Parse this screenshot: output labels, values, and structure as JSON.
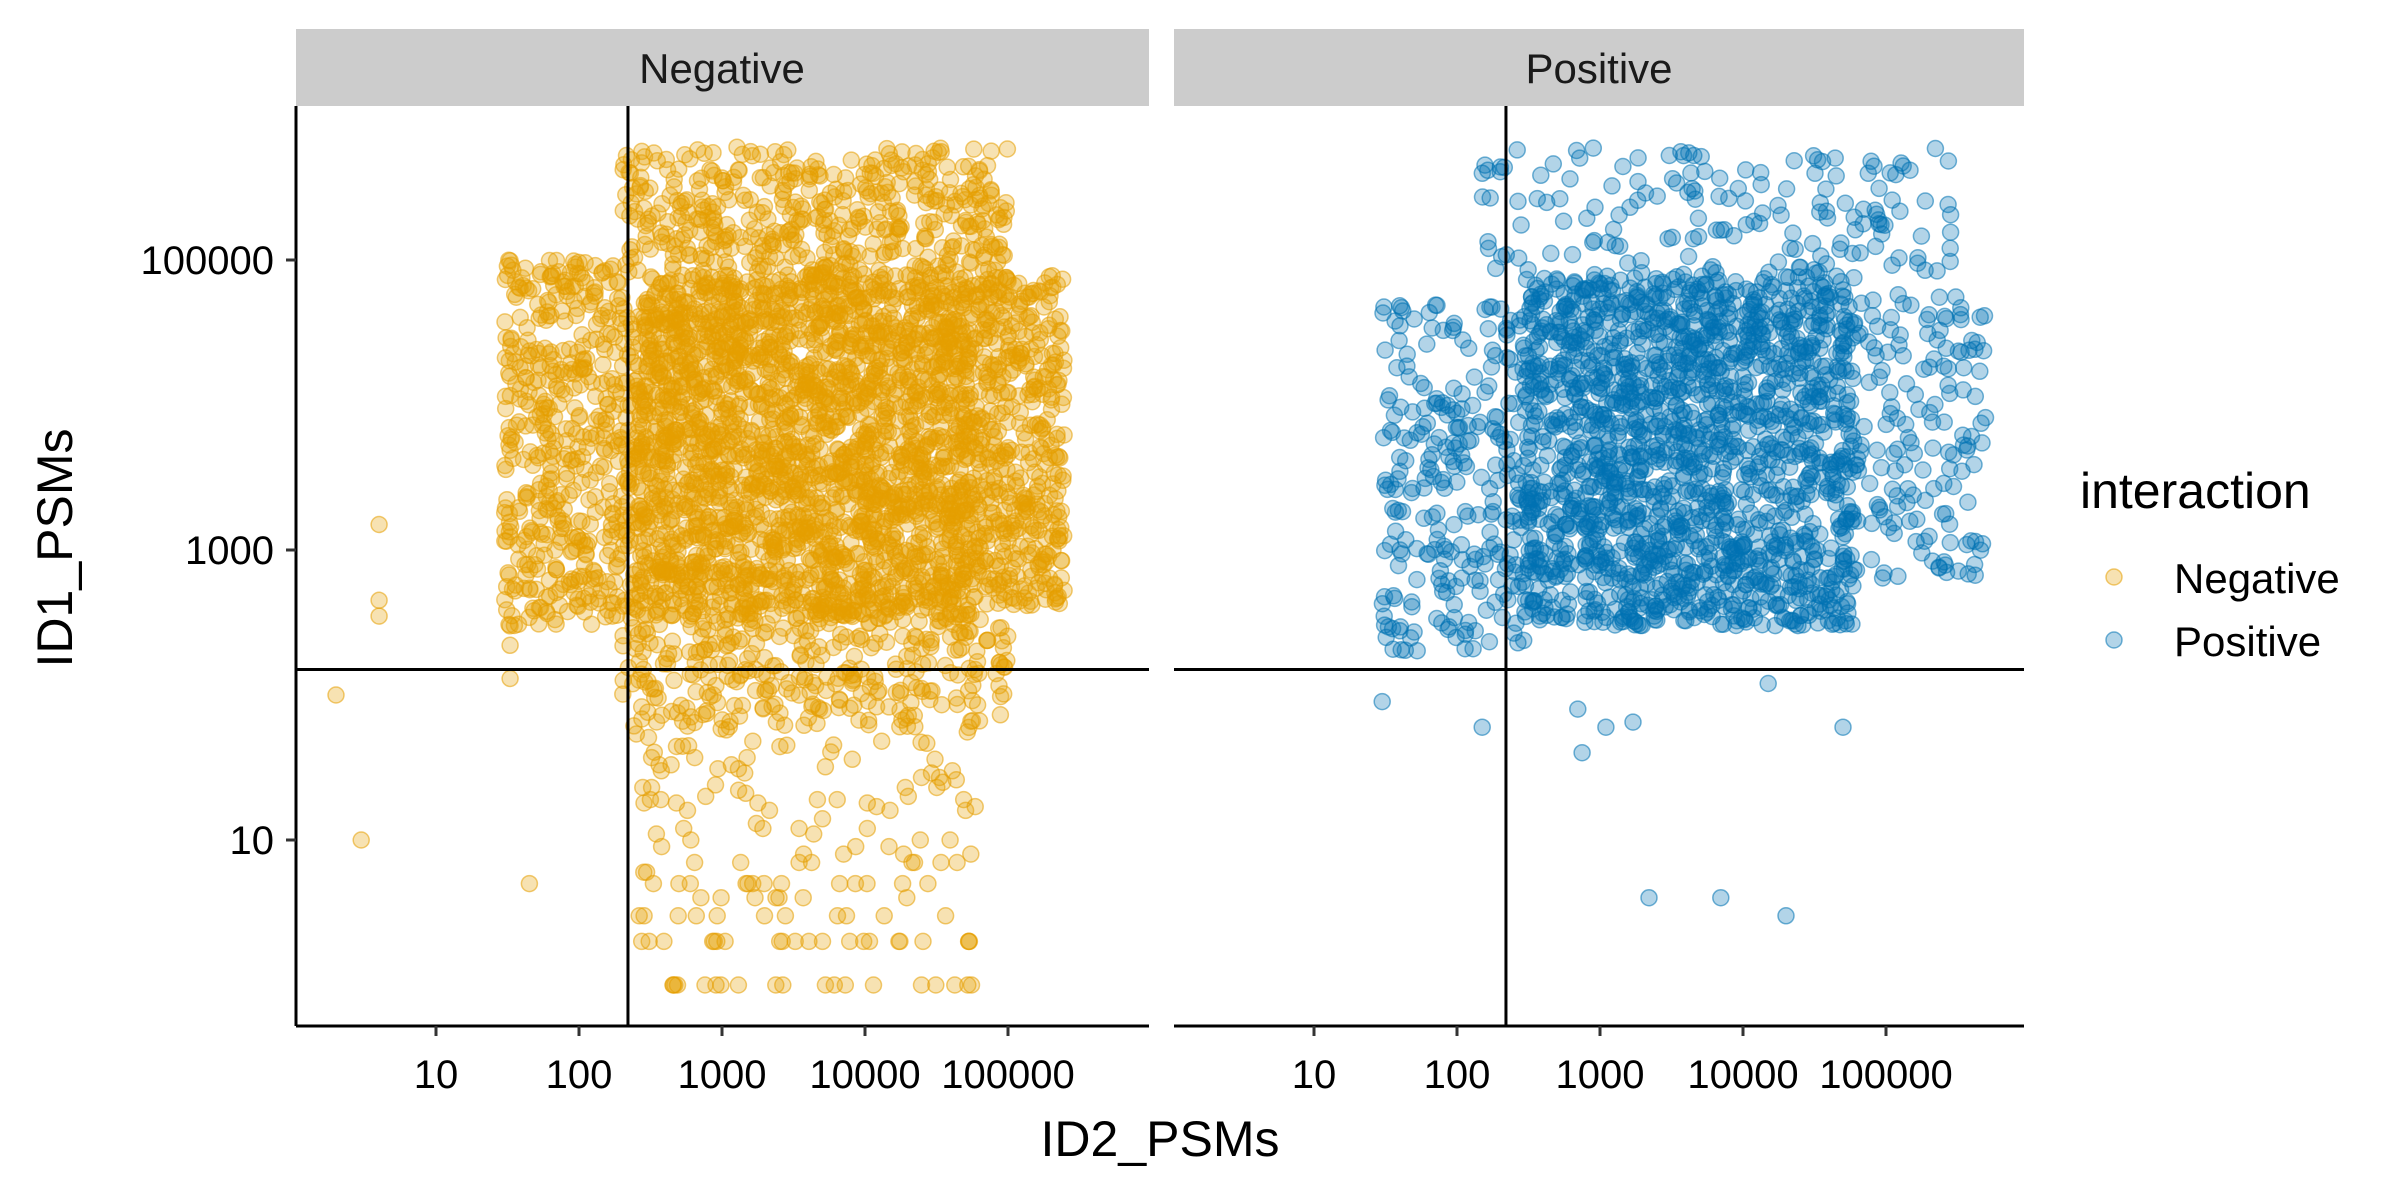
{
  "chart_data": {
    "type": "scatter",
    "facet_variable": "interaction",
    "panels": [
      {
        "label": "Negative"
      },
      {
        "label": "Positive"
      }
    ],
    "xlabel": "ID2_PSMs",
    "ylabel": "ID1_PSMs",
    "x_scale": "log10",
    "y_scale": "log10",
    "x_ticks": [
      10,
      100,
      1000,
      10000,
      100000
    ],
    "x_tick_labels": [
      "10",
      "100",
      "1000",
      "10000",
      "100000"
    ],
    "y_ticks": [
      10,
      1000,
      100000
    ],
    "y_tick_labels": [
      "10",
      "1000",
      "100000"
    ],
    "xlim": [
      1.5,
      1000000
    ],
    "ylim": [
      0.9,
      1000000
    ],
    "reference_lines": {
      "vertical_x": 220,
      "horizontal_y": 150
    },
    "legend": {
      "title": "interaction",
      "position": "right",
      "entries": [
        {
          "label": "Negative",
          "color": "#E69F00"
        },
        {
          "label": "Positive",
          "color": "#0072B2"
        }
      ]
    },
    "point_alpha": 0.3,
    "series": [
      {
        "name": "Negative",
        "color": "#E69F00",
        "panel": "Negative",
        "points": [
          [
            4,
            0.0,
            1500
          ],
          [
            4,
            0.1,
            450
          ],
          [
            4,
            0.05,
            350
          ],
          [
            3,
            0.0,
            10
          ],
          [
            45,
            0.0,
            5
          ],
          [
            2,
            0.0,
            100
          ],
          {
            "cluster": true,
            "n": 2400,
            "x_range": [
              250,
              60000
            ],
            "y_range": [
              350,
              80000
            ]
          },
          {
            "cluster": true,
            "n": 500,
            "x_range": [
              30,
              250
            ],
            "y_range": [
              300,
              100000
            ]
          },
          {
            "cluster": true,
            "n": 420,
            "x_range": [
              60000,
              250000
            ],
            "y_range": [
              400,
              80000
            ]
          },
          {
            "cluster": true,
            "n": 450,
            "x_range": [
              200,
              100000
            ],
            "y_range": [
              80000,
              600000
            ]
          },
          {
            "cluster": true,
            "n": 320,
            "x_range": [
              200,
              100000
            ],
            "y_range": [
              60,
              350
            ]
          },
          {
            "cluster": true,
            "n": 160,
            "x_range": [
              250,
              60000
            ],
            "y_range": [
              1,
              60
            ]
          },
          [
            33,
            0.0,
            130
          ],
          [
            33,
            0.0,
            220
          ],
          [
            33,
            0.0,
            300
          ]
        ]
      },
      {
        "name": "Positive",
        "color": "#0072B2",
        "panel": "Positive",
        "points": [
          {
            "cluster": true,
            "n": 1700,
            "x_range": [
              300,
              60000
            ],
            "y_range": [
              300,
              80000
            ]
          },
          {
            "cluster": true,
            "n": 260,
            "x_range": [
              30,
              300
            ],
            "y_range": [
              200,
              50000
            ]
          },
          {
            "cluster": true,
            "n": 150,
            "x_range": [
              60000,
              500000
            ],
            "y_range": [
              600,
              60000
            ]
          },
          {
            "cluster": true,
            "n": 160,
            "x_range": [
              150,
              300000
            ],
            "y_range": [
              80000,
              600000
            ]
          },
          [
            30,
            0.0,
            90
          ],
          [
            40,
            0.0,
            1000
          ],
          [
            700,
            0.0,
            80
          ],
          [
            750,
            0.0,
            40
          ],
          [
            1100,
            0.0,
            60
          ],
          [
            1700,
            0.0,
            65
          ],
          [
            150,
            0.0,
            60
          ],
          [
            2200,
            0.0,
            4
          ],
          [
            7000,
            0.0,
            4
          ],
          [
            20000,
            0.0,
            3
          ],
          [
            15000,
            0.0,
            120
          ],
          [
            50000,
            0.0,
            60
          ]
        ]
      }
    ]
  }
}
